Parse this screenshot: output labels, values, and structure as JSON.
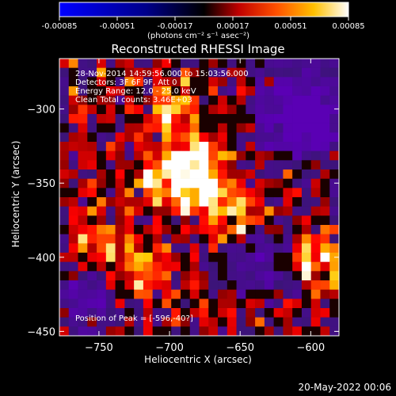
{
  "colorbar": {
    "ticks": [
      "-0.00085",
      "-0.00051",
      "-0.00017",
      "0.00017",
      "0.00051",
      "0.00085"
    ],
    "title": "(photons cm⁻² s⁻¹ asec⁻²)",
    "colormap": [
      "#0000ff",
      "#000000",
      "#5a1a8a",
      "#e02000",
      "#ffb000",
      "#ffffff"
    ],
    "range": [
      -0.00085,
      0.00085
    ]
  },
  "title": "Reconstructed RHESSI Image",
  "annotations": {
    "time": "28-Nov-2014 14:59:56.000 to 15:03:56.000",
    "detectors": "Detectors: 3F 6F 9F, Att 0",
    "energy": "Energy Range: 12.0 - 25.0 keV",
    "clean": "Clean     Total counts: 3.46E+03",
    "peak": "Position of Peak = [-596,-40?]"
  },
  "footer_date": "20-May-2022 00:06",
  "chart_data": {
    "type": "heatmap",
    "title": "Reconstructed RHESSI Image",
    "xlabel": "Heliocentric X (arcsec)",
    "ylabel": "Heliocentric Y (arcsec)",
    "xlim": [
      -778,
      -580
    ],
    "ylim": [
      -453,
      -266
    ],
    "xticks": [
      -750,
      -700,
      -650,
      -600
    ],
    "yticks": [
      -300,
      -350,
      -400,
      -450
    ],
    "xtick_labels": [
      "−750",
      "−700",
      "−650",
      "−600"
    ],
    "ytick_labels": [
      "−300",
      "−350",
      "−400",
      "−450"
    ],
    "grid": false,
    "peak_position": [
      -596,
      -405
    ],
    "bright_regions": [
      {
        "x": -678,
        "y": -355,
        "level": 1.0
      },
      {
        "x": -683,
        "y": -335,
        "level": 0.9
      },
      {
        "x": -708,
        "y": -345,
        "level": 0.7
      },
      {
        "x": -600,
        "y": -400,
        "level": 0.95
      },
      {
        "x": -700,
        "y": -298,
        "level": 0.7
      },
      {
        "x": -755,
        "y": -390,
        "level": 0.7
      },
      {
        "x": -650,
        "y": -375,
        "level": 0.6
      },
      {
        "x": -720,
        "y": -410,
        "level": 0.65
      }
    ],
    "dark_regions": [
      {
        "x": -605,
        "y": -305,
        "level": 0.9
      },
      {
        "x": -630,
        "y": -400,
        "level": 0.6
      },
      {
        "x": -760,
        "y": -430,
        "level": 0.6
      }
    ]
  }
}
